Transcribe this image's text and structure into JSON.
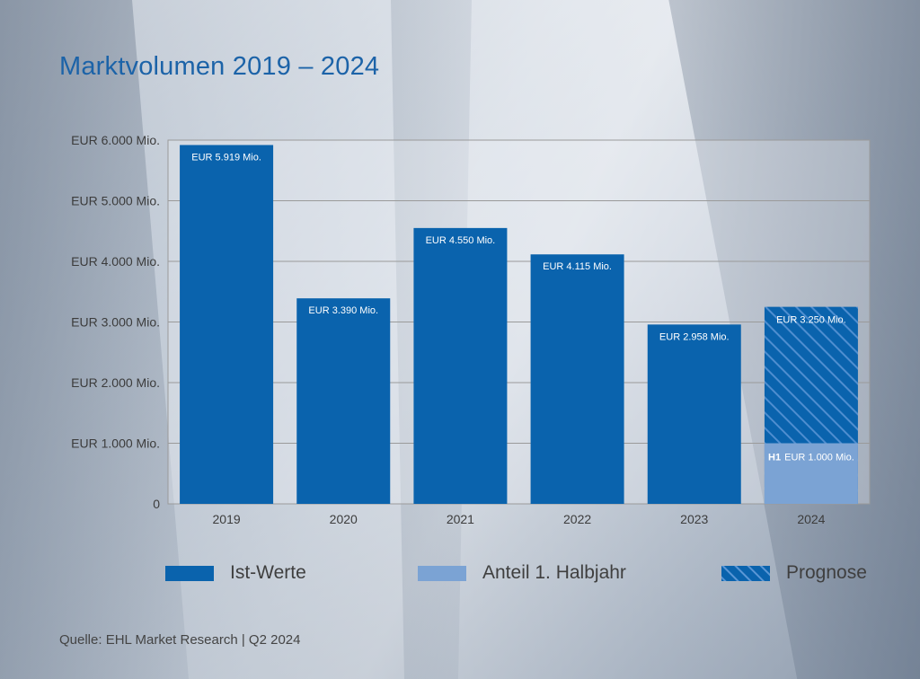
{
  "title": "Marktvolumen 2019 – 2024",
  "source": "Quelle: EHL Market Research | Q2 2024",
  "colors": {
    "bar": "#0a63ad",
    "half_year": "#7ba3d4",
    "forecast_stripe": "#4f8ed0",
    "grid": "#9a9a9a"
  },
  "chart_data": {
    "type": "bar",
    "categories": [
      "2019",
      "2020",
      "2021",
      "2022",
      "2023",
      "2024"
    ],
    "ylim": [
      0,
      6000
    ],
    "y_ticks": [
      {
        "value": 0,
        "label": "0"
      },
      {
        "value": 1000,
        "label": "EUR 1.000 Mio."
      },
      {
        "value": 2000,
        "label": "EUR 2.000 Mio."
      },
      {
        "value": 3000,
        "label": "EUR 3.000 Mio."
      },
      {
        "value": 4000,
        "label": "EUR 4.000 Mio."
      },
      {
        "value": 5000,
        "label": "EUR 5.000 Mio."
      },
      {
        "value": 6000,
        "label": "EUR 6.000 Mio."
      }
    ],
    "grid": true,
    "series": [
      {
        "name": "Ist-Werte",
        "values": [
          5919,
          3390,
          4550,
          4115,
          2958,
          null
        ],
        "labels": [
          "EUR 5.919 Mio.",
          "EUR 3.390 Mio.",
          "EUR 4.550 Mio.",
          "EUR 4.115 Mio.",
          "EUR 2.958 Mio.",
          ""
        ]
      },
      {
        "name": "Anteil 1. Halbjahr",
        "values": [
          null,
          null,
          null,
          null,
          null,
          1000
        ],
        "labels": [
          "",
          "",
          "",
          "",
          "",
          "EUR 1.000 Mio."
        ],
        "prefix": "H1"
      },
      {
        "name": "Prognose",
        "values": [
          null,
          null,
          null,
          null,
          null,
          3250
        ],
        "labels": [
          "",
          "",
          "",
          "",
          "",
          "EUR 3.250 Mio."
        ]
      }
    ],
    "legend_position": "bottom"
  },
  "legend": [
    {
      "label": "Ist-Werte",
      "style": "solid"
    },
    {
      "label": "Anteil 1. Halbjahr",
      "style": "light"
    },
    {
      "label": "Prognose",
      "style": "striped"
    }
  ]
}
